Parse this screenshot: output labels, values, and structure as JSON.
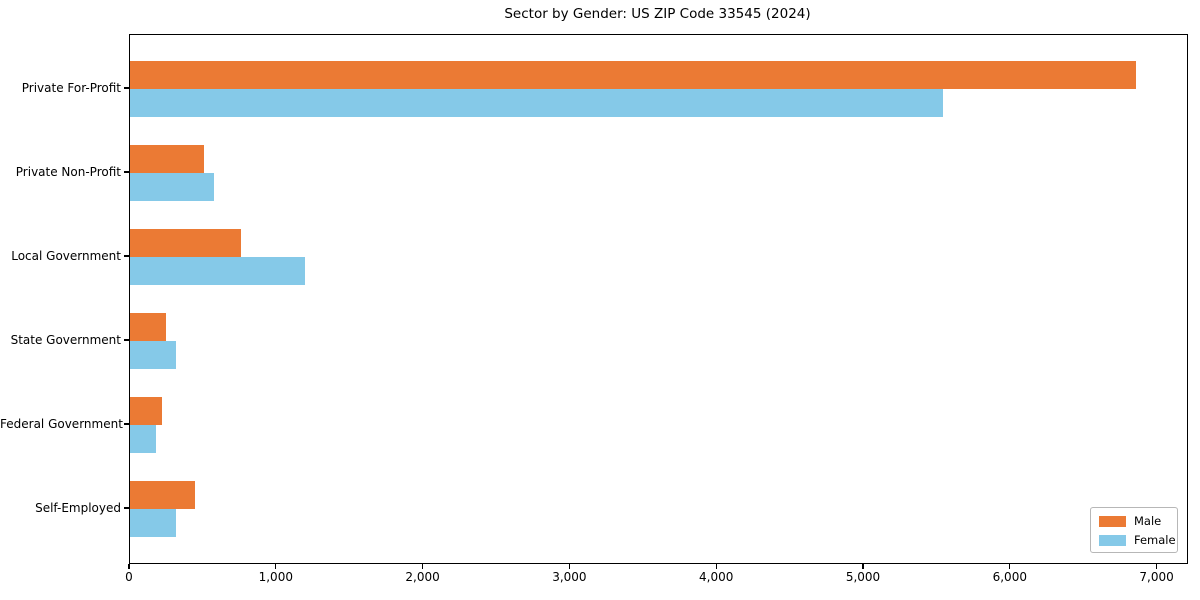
{
  "chart_data": {
    "type": "bar",
    "orientation": "horizontal",
    "title": "Sector by Gender: US ZIP Code 33545 (2024)",
    "categories": [
      "Private For-Profit",
      "Private Non-Profit",
      "Local Government",
      "State Government",
      "Federal Government",
      "Self-Employed"
    ],
    "series": [
      {
        "name": "Male",
        "color": "#EB7A34",
        "values": [
          6850,
          505,
          755,
          245,
          215,
          440
        ]
      },
      {
        "name": "Female",
        "color": "#85C9E8",
        "values": [
          5540,
          570,
          1190,
          315,
          180,
          310
        ]
      }
    ],
    "xlabel": "",
    "ylabel": "",
    "xlim": [
      0,
      7200
    ],
    "xticks": [
      0,
      1000,
      2000,
      3000,
      4000,
      5000,
      6000,
      7000
    ],
    "xtick_labels": [
      "0",
      "1,000",
      "2,000",
      "3,000",
      "4,000",
      "5,000",
      "6,000",
      "7,000"
    ],
    "grid": false,
    "legend_position": "lower right",
    "background_color": "#ffffff",
    "spine_color": "#000000"
  }
}
